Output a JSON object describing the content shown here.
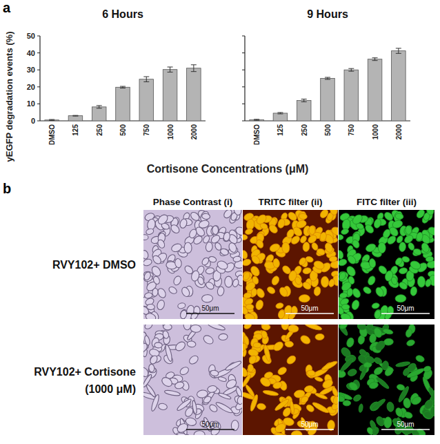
{
  "chart_data": [
    {
      "type": "bar",
      "title": "6 Hours",
      "categories": [
        "DMSO",
        "125",
        "250",
        "500",
        "750",
        "1000",
        "2000"
      ],
      "values": [
        0.5,
        3,
        8.2,
        19.8,
        24.5,
        30.2,
        31
      ],
      "errors": [
        0.3,
        0.2,
        0.8,
        0.5,
        1.5,
        1.5,
        2
      ],
      "color": "#b4b4b4",
      "ylim": [
        0,
        50
      ],
      "yticks": [
        0,
        10,
        20,
        30,
        40,
        50
      ],
      "y_label": "yEGFP degradation events (%)"
    },
    {
      "type": "bar",
      "title": "9 Hours",
      "categories": [
        "DMSO",
        "125",
        "250",
        "500",
        "750",
        "1000",
        "2000"
      ],
      "values": [
        0.6,
        4.5,
        12,
        25,
        30,
        36.3,
        41.2
      ],
      "errors": [
        0.3,
        0.4,
        0.8,
        0.6,
        0.8,
        0.8,
        1.5
      ],
      "color": "#b4b4b4",
      "ylim": [
        0,
        50
      ],
      "yticks": [
        0,
        10,
        20,
        30,
        40,
        50
      ],
      "tick_labels": "x",
      "x_label": "Cortisone Concentrations (μM)"
    }
  ],
  "panel_labels": [
    "a",
    "b"
  ],
  "micrographs": {
    "columns": [
      "Phase Contrast (i)",
      "TRITC filter (ii)",
      "FITC filter (iii)"
    ],
    "rows": [
      [
        "RVY102+ DMSO"
      ],
      [
        "RVY102+ Cortisone",
        "(1000 μM)"
      ]
    ],
    "scale_bar": "50μm"
  }
}
